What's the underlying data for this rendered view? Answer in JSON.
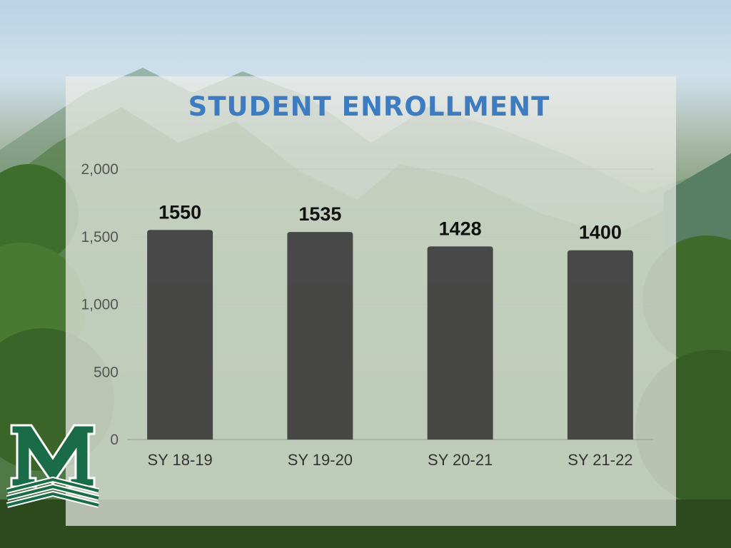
{
  "chart_data": {
    "type": "bar",
    "title": "STUDENT ENROLLMENT",
    "categories": [
      "SY 18-19",
      "SY 19-20",
      "SY 20-21",
      "SY 21-22"
    ],
    "values": [
      1550,
      1535,
      1428,
      1400
    ],
    "data_labels": [
      "1550",
      "1535",
      "1428",
      "1400"
    ],
    "yticks": [
      0,
      500,
      1000,
      1500,
      2000
    ],
    "ytick_labels": [
      "0",
      "500",
      "1,000",
      "1,500",
      "2,000"
    ],
    "ylim": [
      0,
      2000
    ],
    "grid": true,
    "bar_color": "#3a3a3a"
  },
  "logo": {
    "letter": "M",
    "color": "#1a6b47"
  }
}
